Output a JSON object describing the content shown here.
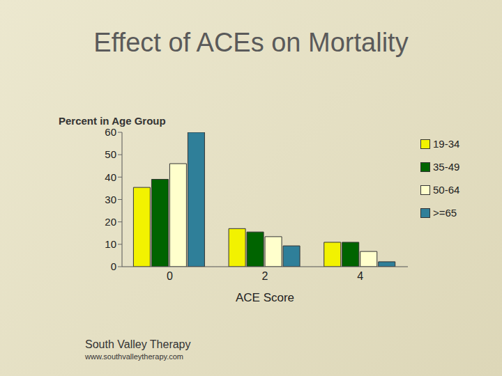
{
  "chart_data": {
    "type": "bar",
    "title": "Effect of ACEs on Mortality",
    "x_label": "ACE Score",
    "y_label": "Percent in Age Group",
    "categories": [
      "0",
      "2",
      "4"
    ],
    "series": [
      {
        "name": "19-34",
        "color": "#f2f200",
        "values": [
          35.4,
          17,
          10.9
        ]
      },
      {
        "name": "35-49",
        "color": "#006400",
        "values": [
          39,
          15.5,
          10.9
        ]
      },
      {
        "name": "50-64",
        "color": "#ffffcc",
        "values": [
          46,
          13.4,
          6.8
        ]
      },
      {
        "name": ">=65",
        "color": "#2f7f99",
        "values": [
          60,
          9.3,
          2.2
        ]
      }
    ],
    "ylim": [
      0,
      60
    ],
    "yticks": [
      0,
      10,
      20,
      30,
      40,
      50,
      60
    ],
    "grid": false,
    "legend": "right",
    "annotations": [
      "South Valley Therapy",
      "www.southvalleytherapy.com"
    ]
  }
}
